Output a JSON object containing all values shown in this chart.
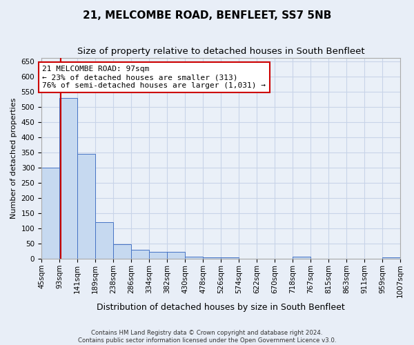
{
  "title": "21, MELCOMBE ROAD, BENFLEET, SS7 5NB",
  "subtitle": "Size of property relative to detached houses in South Benfleet",
  "xlabel": "Distribution of detached houses by size in South Benfleet",
  "ylabel": "Number of detached properties",
  "footer_line1": "Contains HM Land Registry data © Crown copyright and database right 2024.",
  "footer_line2": "Contains public sector information licensed under the Open Government Licence v3.0.",
  "bin_edges": [
    45,
    93,
    141,
    189,
    238,
    286,
    334,
    382,
    430,
    478,
    526,
    574,
    622,
    670,
    718,
    767,
    815,
    863,
    911,
    959,
    1007
  ],
  "bin_labels": [
    "45sqm",
    "93sqm",
    "141sqm",
    "189sqm",
    "238sqm",
    "286sqm",
    "334sqm",
    "382sqm",
    "430sqm",
    "478sqm",
    "526sqm",
    "574sqm",
    "622sqm",
    "670sqm",
    "718sqm",
    "767sqm",
    "815sqm",
    "863sqm",
    "911sqm",
    "959sqm",
    "1007sqm"
  ],
  "bar_heights": [
    300,
    530,
    345,
    120,
    48,
    30,
    22,
    22,
    8,
    5,
    5,
    0,
    0,
    0,
    8,
    0,
    0,
    0,
    0,
    5
  ],
  "bar_color": "#c6d9f0",
  "bar_edge_color": "#4472c4",
  "property_line_x": 97,
  "property_line_color": "#cc0000",
  "annotation_line1": "21 MELCOMBE ROAD: 97sqm",
  "annotation_line2": "← 23% of detached houses are smaller (313)",
  "annotation_line3": "76% of semi-detached houses are larger (1,031) →",
  "annotation_box_color": "#cc0000",
  "ylim": [
    0,
    660
  ],
  "yticks": [
    0,
    50,
    100,
    150,
    200,
    250,
    300,
    350,
    400,
    450,
    500,
    550,
    600,
    650
  ],
  "bg_color": "#e8eef7",
  "plot_bg_color": "#eaf0f8",
  "grid_color": "#c8d4e8",
  "title_fontsize": 11,
  "subtitle_fontsize": 9.5,
  "ylabel_fontsize": 8,
  "xlabel_fontsize": 9,
  "tick_fontsize": 7.5,
  "annotation_fontsize": 8
}
